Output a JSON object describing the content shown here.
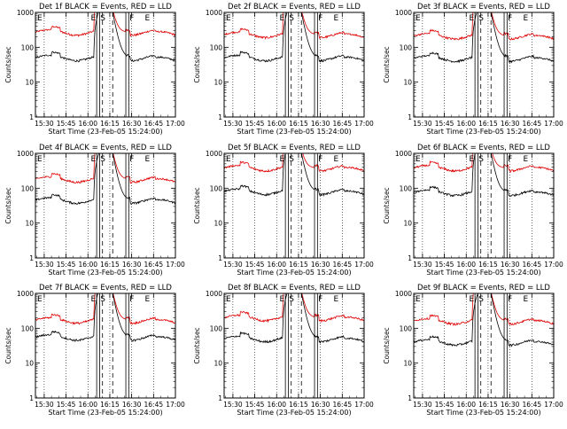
{
  "chart_data": {
    "type": "line",
    "y_scale": "log",
    "ylim": [
      1,
      1000
    ],
    "y_ticks": [
      "1",
      "10",
      "100",
      "1000"
    ],
    "ylabel": "Counts/sec",
    "xlabel": "Start Time (23-Feb-05 15:24:00)",
    "x_ticks": [
      "15:30",
      "15:45",
      "16:00",
      "16:15",
      "16:30",
      "16:45",
      "17:00"
    ],
    "series_colors": {
      "events": "#000000",
      "lld": "#e00000"
    },
    "markers": {
      "e": "E",
      "s": "S",
      "f": "F"
    },
    "panels": [
      {
        "title": "Det 1f BLACK = Events, RED = LLD",
        "events_level": 50,
        "lld_level": 270
      },
      {
        "title": "Det 2f BLACK = Events, RED = LLD",
        "events_level": 50,
        "lld_level": 230
      },
      {
        "title": "Det 3f BLACK = Events, RED = LLD",
        "events_level": 48,
        "lld_level": 210
      },
      {
        "title": "Det 4f BLACK = Events, RED = LLD",
        "events_level": 45,
        "lld_level": 180
      },
      {
        "title": "Det 5f BLACK = Events, RED = LLD",
        "events_level": 80,
        "lld_level": 380
      },
      {
        "title": "Det 6f BLACK = Events, RED = LLD",
        "events_level": 75,
        "lld_level": 380
      },
      {
        "title": "Det 7f BLACK = Events, RED = LLD",
        "events_level": 55,
        "lld_level": 170
      },
      {
        "title": "Det 8f BLACK = Events, RED = LLD",
        "events_level": 50,
        "lld_level": 200
      },
      {
        "title": "Det 9f BLACK = Events, RED = LLD",
        "events_level": 40,
        "lld_level": 160
      }
    ]
  }
}
